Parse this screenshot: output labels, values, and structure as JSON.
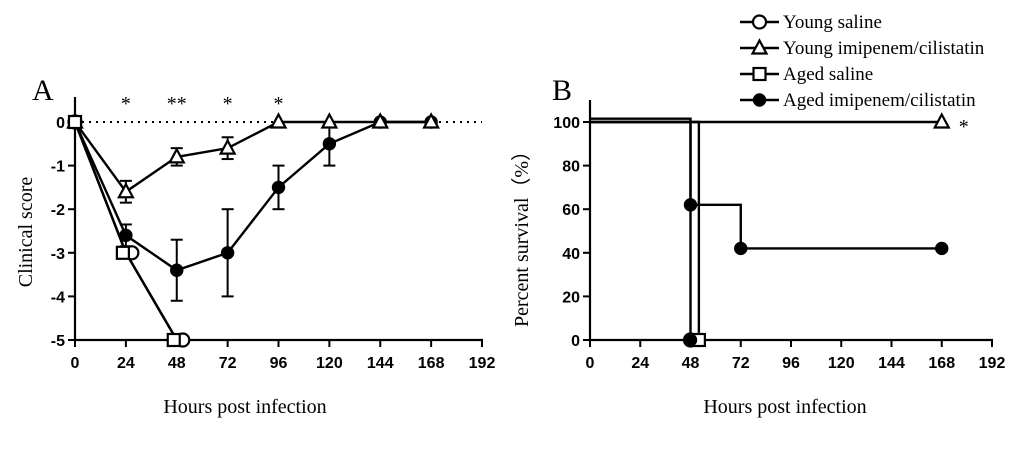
{
  "legend": {
    "entries": [
      {
        "label": "Young saline",
        "marker": "open-circle"
      },
      {
        "label": "Young imipenem/cilistatin",
        "marker": "open-triangle"
      },
      {
        "label": "Aged saline",
        "marker": "open-square"
      },
      {
        "label": "Aged imipenem/cilistatin",
        "marker": "filled-circle"
      }
    ],
    "placement": "top-right"
  },
  "chart_data": [
    {
      "panel": "A",
      "type": "line",
      "xlabel": "Hours post infection",
      "ylabel": "Clinical score",
      "xlim": [
        0,
        192
      ],
      "ylim": [
        -5,
        0
      ],
      "xticks": [
        "0",
        "24",
        "48",
        "72",
        "96",
        "120",
        "144",
        "168",
        "192"
      ],
      "yticks": [
        "0",
        "-1",
        "-2",
        "-3",
        "-4",
        "-5"
      ],
      "reference_line": {
        "y": 0,
        "style": "dotted"
      },
      "significance": [
        {
          "x": 24,
          "label": "*"
        },
        {
          "x": 48,
          "label": "**"
        },
        {
          "x": 72,
          "label": "*"
        },
        {
          "x": 96,
          "label": "*"
        }
      ],
      "series": [
        {
          "name": "Young saline",
          "marker": "open-circle",
          "points": [
            {
              "x": 0,
              "y": 0
            },
            {
              "x": 24,
              "y": -3.0
            },
            {
              "x": 48,
              "y": -5.0
            }
          ],
          "err": [
            0,
            0,
            0
          ]
        },
        {
          "name": "Young imipenem/cilistatin",
          "marker": "open-triangle",
          "points": [
            {
              "x": 0,
              "y": 0
            },
            {
              "x": 24,
              "y": -1.6
            },
            {
              "x": 48,
              "y": -0.8
            },
            {
              "x": 72,
              "y": -0.6
            },
            {
              "x": 96,
              "y": 0
            },
            {
              "x": 120,
              "y": 0
            },
            {
              "x": 144,
              "y": 0
            },
            {
              "x": 168,
              "y": 0
            }
          ],
          "err": [
            0,
            0.25,
            0.2,
            0.25,
            0,
            0,
            0,
            0
          ]
        },
        {
          "name": "Aged saline",
          "marker": "open-square",
          "points": [
            {
              "x": 0,
              "y": 0
            },
            {
              "x": 24,
              "y": -3.0
            },
            {
              "x": 48,
              "y": -5.0
            }
          ],
          "err": [
            0,
            0,
            0
          ]
        },
        {
          "name": "Aged imipenem/cilistatin",
          "marker": "filled-circle",
          "points": [
            {
              "x": 0,
              "y": 0
            },
            {
              "x": 24,
              "y": -2.6
            },
            {
              "x": 48,
              "y": -3.4
            },
            {
              "x": 72,
              "y": -3.0
            },
            {
              "x": 96,
              "y": -1.5
            },
            {
              "x": 120,
              "y": -0.5
            },
            {
              "x": 144,
              "y": 0
            },
            {
              "x": 168,
              "y": 0
            }
          ],
          "err": [
            0,
            0.25,
            0.7,
            1.0,
            0.5,
            0.5,
            0,
            0
          ]
        }
      ]
    },
    {
      "panel": "B",
      "type": "line",
      "subtype": "step",
      "xlabel": "Hours post infection",
      "ylabel": "Percent survival（%）",
      "xlim": [
        0,
        192
      ],
      "ylim": [
        0,
        100
      ],
      "xticks": [
        "0",
        "24",
        "48",
        "72",
        "96",
        "120",
        "144",
        "168",
        "192"
      ],
      "yticks": [
        "0",
        "20",
        "40",
        "60",
        "80",
        "100"
      ],
      "significance": [
        {
          "x": 168,
          "y": 100,
          "label": "*"
        }
      ],
      "series": [
        {
          "name": "Young saline",
          "marker": "open-circle",
          "steps": [
            {
              "x": 0,
              "y": 101.5
            },
            {
              "x": 48,
              "y": 101.5
            },
            {
              "x": 48,
              "y": 0
            }
          ],
          "markers": [
            {
              "x": 48,
              "y": 0
            }
          ]
        },
        {
          "name": "Young imipenem/cilistatin",
          "marker": "open-triangle",
          "steps": [
            {
              "x": 0,
              "y": 100
            },
            {
              "x": 168,
              "y": 100
            }
          ],
          "markers": [
            {
              "x": 168,
              "y": 100
            }
          ]
        },
        {
          "name": "Aged saline",
          "marker": "open-square",
          "steps": [
            {
              "x": 0,
              "y": 100
            },
            {
              "x": 52,
              "y": 100
            },
            {
              "x": 52,
              "y": 0
            }
          ],
          "markers": [
            {
              "x": 52,
              "y": 0
            }
          ]
        },
        {
          "name": "Aged imipenem/cilistatin",
          "marker": "filled-circle",
          "steps": [
            {
              "x": 0,
              "y": 100
            },
            {
              "x": 48,
              "y": 100
            },
            {
              "x": 48,
              "y": 62
            },
            {
              "x": 72,
              "y": 62
            },
            {
              "x": 72,
              "y": 42
            },
            {
              "x": 168,
              "y": 42
            }
          ],
          "markers": [
            {
              "x": 48,
              "y": 62
            },
            {
              "x": 48,
              "y": 0
            },
            {
              "x": 72,
              "y": 42
            },
            {
              "x": 168,
              "y": 42
            }
          ]
        }
      ]
    }
  ]
}
